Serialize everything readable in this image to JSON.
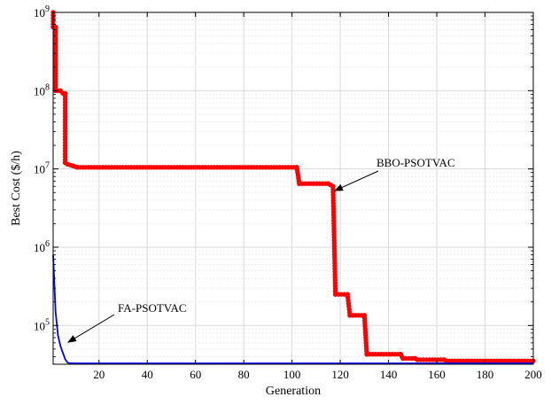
{
  "chart_data": {
    "type": "line",
    "title": "",
    "xlabel": "Generation",
    "ylabel": "Best Cost ($/h)",
    "xlim": [
      1,
      200
    ],
    "ylim": [
      32000,
      1000000000
    ],
    "yscale": "log",
    "grid": true,
    "x_ticks": [
      20,
      40,
      60,
      80,
      100,
      120,
      140,
      160,
      180,
      200
    ],
    "x_tick_labels": [
      "20",
      "40",
      "60",
      "80",
      "100",
      "120",
      "140",
      "160",
      "180",
      "200"
    ],
    "y_ticks": [
      100000,
      1000000,
      10000000,
      100000000,
      1000000000
    ],
    "y_tick_labels": [
      {
        "base": "10",
        "exp": "5"
      },
      {
        "base": "10",
        "exp": "6"
      },
      {
        "base": "10",
        "exp": "7"
      },
      {
        "base": "10",
        "exp": "8"
      },
      {
        "base": "10",
        "exp": "9"
      }
    ],
    "series": [
      {
        "name": "BBO-PSOTVAC",
        "color": "#ff0000",
        "style": "dash-dot with dot markers",
        "points": [
          [
            1,
            1000000000
          ],
          [
            1,
            650000000
          ],
          [
            2,
            650000000
          ],
          [
            2,
            100000000
          ],
          [
            4,
            100000000
          ],
          [
            5,
            93000000
          ],
          [
            6,
            92000000
          ],
          [
            6,
            12000000
          ],
          [
            7,
            11500000
          ],
          [
            9,
            11000000
          ],
          [
            11,
            10500000
          ],
          [
            102,
            10500000
          ],
          [
            103,
            6500000
          ],
          [
            115,
            6500000
          ],
          [
            117,
            6000000
          ],
          [
            118,
            250000
          ],
          [
            123,
            250000
          ],
          [
            124,
            135000
          ],
          [
            130,
            135000
          ],
          [
            131,
            43000
          ],
          [
            145,
            43000
          ],
          [
            146,
            38000
          ],
          [
            151,
            38000
          ],
          [
            152,
            36500
          ],
          [
            163,
            36500
          ],
          [
            164,
            35200
          ],
          [
            200,
            35200
          ]
        ]
      },
      {
        "name": "FA-PSOTVAC",
        "color": "#0000ff",
        "style": "solid",
        "points": [
          [
            1,
            800000
          ],
          [
            2,
            150000
          ],
          [
            3,
            75000
          ],
          [
            4,
            55000
          ],
          [
            5,
            45000
          ],
          [
            6,
            37000
          ],
          [
            7,
            33500
          ],
          [
            8,
            33000
          ],
          [
            10,
            32800
          ],
          [
            200,
            32800
          ]
        ]
      }
    ],
    "annotations": [
      {
        "text": "BBO-PSOTVAC",
        "point_at": [
          117,
          5000000
        ]
      },
      {
        "text": "FA-PSOTVAC",
        "point_at": [
          5,
          55000
        ]
      }
    ]
  }
}
